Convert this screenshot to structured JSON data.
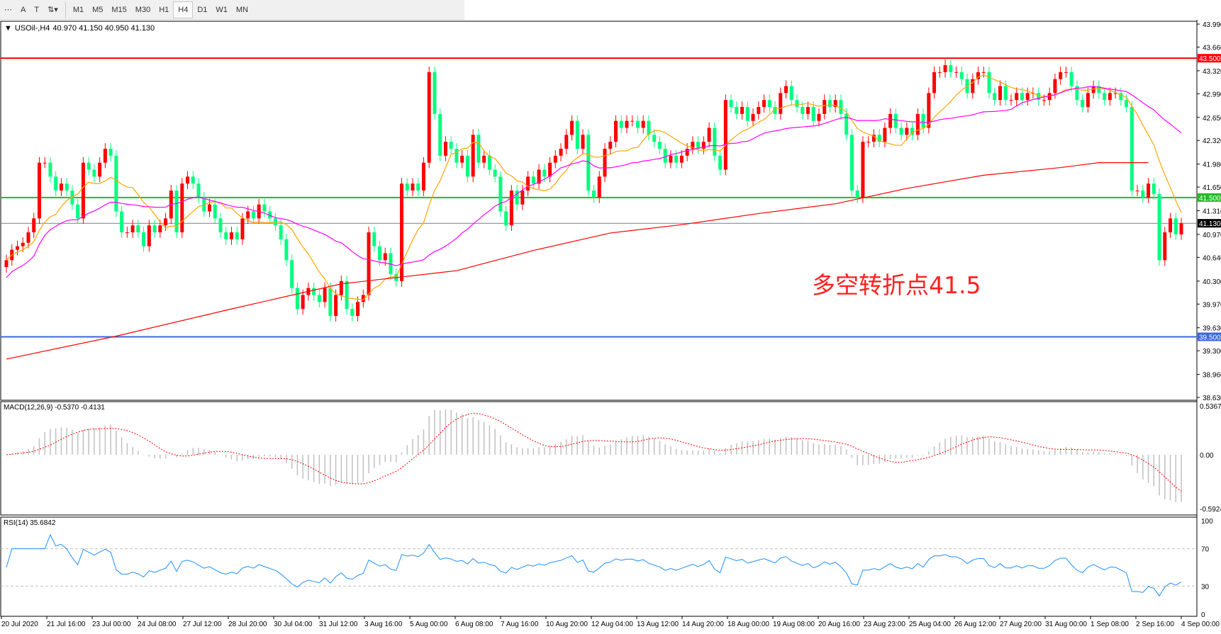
{
  "toolbar": {
    "tools": [
      {
        "icon": "grid-icon"
      },
      {
        "label": "A",
        "icon": "text-icon"
      },
      {
        "label": "T",
        "icon": "text-label-icon"
      },
      {
        "icon": "arrows-icon"
      }
    ],
    "timeframes": [
      "M1",
      "M5",
      "M15",
      "M30",
      "H1",
      "H4",
      "D1",
      "W1",
      "MN"
    ],
    "active_timeframe": "H4"
  },
  "header": {
    "symbol": "USOil-,H4",
    "ohlc": "40.970 41.150 40.950 41.130"
  },
  "annotation": "多空转折点41.5",
  "colors": {
    "bull": "#ff0000",
    "bear": "#00ff7f",
    "ma_fast": "#ffa500",
    "ma_mid": "#ff00ff",
    "ma_slow": "#ff0000",
    "resistance": "#ff0000",
    "pivot": "#22bb22",
    "support": "#3a66dd",
    "current": "#708090",
    "macd_hist": "#c0c0c0",
    "macd_signal": "#ff0000",
    "rsi": "#1e90ff"
  },
  "chart_data": {
    "type": "candlestick",
    "price_axis": {
      "range": [
        38.63,
        43.99
      ],
      "ticks": [
        "43.990",
        "43.660",
        "43.320",
        "42.990",
        "42.650",
        "42.320",
        "41.980",
        "41.650",
        "41.310",
        "40.970",
        "40.640",
        "40.300",
        "39.970",
        "39.630",
        "39.300",
        "38.960",
        "38.630"
      ]
    },
    "levels": [
      {
        "value": 43.5,
        "label": "43.500",
        "role": "resistance"
      },
      {
        "value": 41.5,
        "label": "41.500",
        "role": "pivot"
      },
      {
        "value": 41.13,
        "label": "41.130",
        "role": "current"
      },
      {
        "value": 39.5,
        "label": "39.500",
        "role": "support"
      }
    ],
    "closes": [
      40.6,
      40.75,
      40.8,
      40.85,
      41.0,
      41.2,
      42.0,
      42.0,
      41.8,
      41.6,
      41.7,
      41.6,
      41.4,
      41.2,
      42.0,
      41.9,
      41.8,
      42.0,
      42.2,
      42.1,
      41.3,
      41.0,
      41.0,
      41.1,
      41.0,
      40.8,
      41.1,
      41.0,
      41.1,
      41.2,
      41.6,
      41.0,
      41.7,
      41.8,
      41.7,
      41.5,
      41.3,
      41.4,
      41.2,
      41.0,
      40.9,
      41.0,
      40.9,
      41.2,
      41.3,
      41.2,
      41.4,
      41.3,
      41.2,
      41.1,
      40.9,
      40.6,
      40.2,
      39.9,
      40.1,
      40.2,
      40.1,
      40.0,
      40.2,
      39.8,
      40.1,
      40.3,
      39.9,
      39.8,
      40.0,
      40.1,
      41.0,
      40.8,
      40.6,
      40.7,
      40.4,
      40.3,
      41.7,
      41.6,
      41.7,
      41.6,
      42.0,
      43.3,
      42.7,
      42.1,
      42.3,
      42.2,
      42.0,
      42.1,
      41.8,
      42.4,
      42.0,
      42.1,
      41.9,
      41.8,
      41.3,
      41.1,
      41.6,
      41.4,
      41.6,
      41.8,
      41.7,
      41.9,
      41.8,
      42.0,
      42.1,
      42.2,
      42.4,
      42.6,
      42.2,
      42.4,
      41.6,
      41.5,
      41.8,
      42.2,
      42.3,
      42.6,
      42.5,
      42.6,
      42.6,
      42.5,
      42.6,
      42.4,
      42.3,
      42.2,
      42.0,
      42.1,
      42.0,
      42.1,
      42.2,
      42.3,
      42.2,
      42.3,
      42.5,
      42.1,
      41.9,
      42.9,
      42.8,
      42.7,
      42.8,
      42.6,
      42.7,
      42.8,
      42.9,
      42.8,
      42.7,
      43.0,
      43.1,
      42.9,
      42.8,
      42.7,
      42.8,
      42.6,
      42.7,
      42.9,
      42.8,
      42.9,
      42.7,
      42.4,
      41.6,
      41.5,
      42.3,
      42.3,
      42.4,
      42.3,
      42.5,
      42.7,
      42.5,
      42.4,
      42.5,
      42.4,
      42.7,
      42.5,
      43.0,
      43.3,
      43.3,
      43.4,
      43.3,
      43.3,
      43.2,
      43.0,
      43.2,
      43.3,
      43.3,
      43.0,
      42.9,
      43.1,
      42.9,
      42.9,
      43.0,
      42.9,
      43.0,
      43.0,
      42.9,
      42.9,
      43.0,
      43.2,
      43.3,
      43.3,
      43.1,
      42.9,
      42.8,
      43.0,
      43.1,
      43.0,
      42.9,
      43.0,
      43.0,
      42.9,
      42.8,
      41.6,
      41.6,
      41.5,
      41.7,
      41.55,
      40.6,
      41.0,
      41.2,
      40.97,
      41.13
    ],
    "ma_slow": [
      [
        0,
        39.18
      ],
      [
        20,
        39.51
      ],
      [
        41,
        39.9
      ],
      [
        61,
        40.26
      ],
      [
        82,
        40.45
      ],
      [
        96,
        40.74
      ],
      [
        110,
        40.99
      ],
      [
        123,
        41.11
      ],
      [
        137,
        41.27
      ],
      [
        151,
        41.41
      ],
      [
        164,
        41.63
      ],
      [
        178,
        41.82
      ],
      [
        192,
        41.93
      ],
      [
        199,
        42.0
      ],
      [
        208,
        42.0
      ]
    ],
    "macd": {
      "label": "MACD(12,26,9) -0.5370 -0.4131",
      "ticks": [
        "0.5367",
        "0.00",
        "-0.5924"
      ],
      "range": [
        -0.5924,
        0.5367
      ]
    },
    "rsi": {
      "label": "RSI(14) 35.6842",
      "ticks": [
        "100",
        "70",
        "30",
        "0"
      ],
      "levels": [
        70,
        30
      ]
    },
    "time_labels": [
      "20 Jul 2020",
      "21 Jul 16:00",
      "23 Jul 00:00",
      "24 Jul 08:00",
      "27 Jul 12:00",
      "28 Jul 20:00",
      "30 Jul 04:00",
      "31 Jul 12:00",
      "3 Aug 16:00",
      "5 Aug 00:00",
      "6 Aug 08:00",
      "7 Aug 16:00",
      "10 Aug 20:00",
      "12 Aug 04:00",
      "13 Aug 12:00",
      "14 Aug 20:00",
      "18 Aug 00:00",
      "19 Aug 08:00",
      "20 Aug 16:00",
      "23 Aug 23:00",
      "25 Aug 04:00",
      "26 Aug 12:00",
      "27 Aug 20:00",
      "31 Aug 00:00",
      "1 Sep 08:00",
      "2 Sep 16:00",
      "4 Sep 00:00"
    ]
  }
}
